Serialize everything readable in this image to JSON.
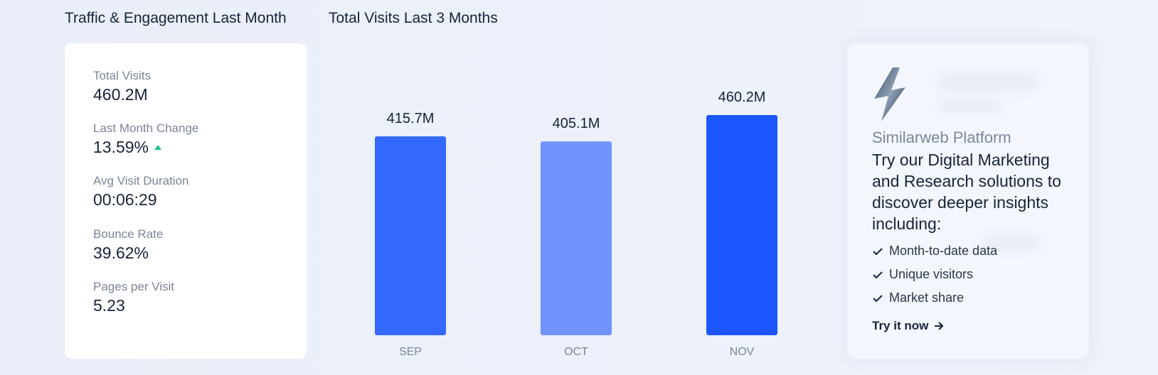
{
  "headings": {
    "left": "Traffic & Engagement Last Month",
    "middle": "Total Visits Last 3 Months"
  },
  "stats": [
    {
      "label": "Total Visits",
      "value": "460.2M"
    },
    {
      "label": "Last Month Change",
      "value": "13.59%"
    },
    {
      "label": "Avg Visit Duration",
      "value": "00:06:29"
    },
    {
      "label": "Bounce Rate",
      "value": "39.62%"
    },
    {
      "label": "Pages per Visit",
      "value": "5.23"
    }
  ],
  "colors": {
    "bar_sep": "#3369ff",
    "bar_oct": "#7193fd",
    "bar_nov": "#1b56ff",
    "trend_up": "#1ec17e"
  },
  "chart_data": {
    "type": "bar",
    "title": "Total Visits Last 3 Months",
    "categories": [
      "SEP",
      "OCT",
      "NOV"
    ],
    "values": [
      415.7,
      405.1,
      460.2
    ],
    "data_labels": [
      "415.7M",
      "405.1M",
      "460.2M"
    ],
    "unit": "M",
    "ylim": [
      0,
      460.2
    ],
    "grid": false
  },
  "promo": {
    "kicker": "Similarweb Platform",
    "headline": "Try our Digital Marketing and Research solutions to discover deeper insights including:",
    "features": [
      "Month-to-date data",
      "Unique visitors",
      "Market share"
    ],
    "cta": "Try it now",
    "icons": {
      "logo": "lightning-bolt-icon",
      "check": "check-icon",
      "arrow": "arrow-right-icon"
    }
  }
}
